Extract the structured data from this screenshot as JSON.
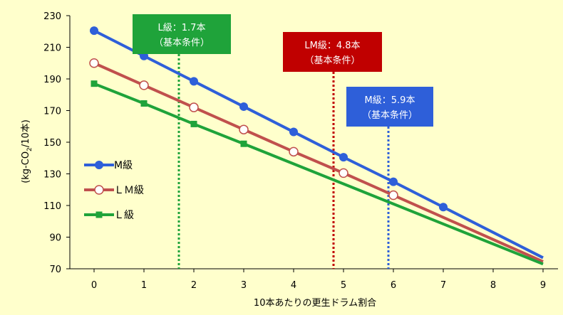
{
  "chart_data": {
    "type": "line",
    "title": "",
    "xlabel": "10本あたりの更生ドラム割合",
    "ylabel_parts": [
      "(kg-CO",
      "2",
      "/10本)"
    ],
    "xlim": [
      0,
      9
    ],
    "ylim": [
      70,
      230
    ],
    "x_ticks": [
      0,
      1,
      2,
      3,
      4,
      5,
      6,
      7,
      8,
      9
    ],
    "y_ticks": [
      70,
      90,
      110,
      130,
      150,
      170,
      190,
      210,
      230
    ],
    "grid": false,
    "legend_position": "left",
    "series": [
      {
        "name": "M級",
        "color": "#2e5fd9",
        "marker": "circle-filled",
        "x": [
          0,
          1,
          2,
          3,
          4,
          5,
          6,
          7,
          9
        ],
        "y": [
          220.5,
          204.5,
          188.5,
          172.5,
          156.5,
          140.5,
          125,
          109,
          77
        ]
      },
      {
        "name": "ＬＭ級",
        "color": "#c0504d",
        "marker": "circle-open",
        "x": [
          0,
          1,
          2,
          3,
          4,
          5,
          6,
          9
        ],
        "y": [
          200,
          186,
          172,
          158,
          144,
          130.5,
          116.5,
          74.5
        ]
      },
      {
        "name": "Ｌ級",
        "color": "#1fa33a",
        "marker": "square-filled",
        "x": [
          0,
          1,
          2,
          3,
          9
        ],
        "y": [
          187,
          174.5,
          161.5,
          149,
          73
        ]
      }
    ],
    "annotations": [
      {
        "line1": "L級：1.7本",
        "line2": "（基本条件）",
        "x": 1.7,
        "color": "#1fa33a"
      },
      {
        "line1": "LM級：4.8本",
        "line2": "（基本条件）",
        "x": 4.8,
        "color": "#c00000"
      },
      {
        "line1": "M級：5.9本",
        "line2": "（基本条件）",
        "x": 5.9,
        "color": "#2e5fd9"
      }
    ]
  }
}
